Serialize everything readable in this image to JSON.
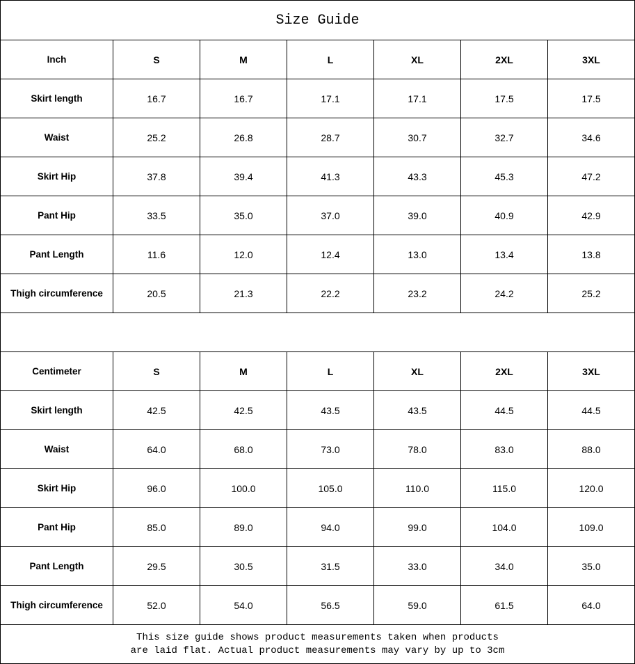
{
  "title": "Size Guide",
  "tables": [
    {
      "unit": "Inch",
      "sizes": [
        "S",
        "M",
        "L",
        "XL",
        "2XL",
        "3XL"
      ],
      "rows": [
        {
          "label": "Skirt length",
          "values": [
            "16.7",
            "16.7",
            "17.1",
            "17.1",
            "17.5",
            "17.5"
          ]
        },
        {
          "label": "Waist",
          "values": [
            "25.2",
            "26.8",
            "28.7",
            "30.7",
            "32.7",
            "34.6"
          ]
        },
        {
          "label": "Skirt Hip",
          "values": [
            "37.8",
            "39.4",
            "41.3",
            "43.3",
            "45.3",
            "47.2"
          ]
        },
        {
          "label": "Pant Hip",
          "values": [
            "33.5",
            "35.0",
            "37.0",
            "39.0",
            "40.9",
            "42.9"
          ]
        },
        {
          "label": "Pant Length",
          "values": [
            "11.6",
            "12.0",
            "12.4",
            "13.0",
            "13.4",
            "13.8"
          ]
        },
        {
          "label": "Thigh circumference",
          "values": [
            "20.5",
            "21.3",
            "22.2",
            "23.2",
            "24.2",
            "25.2"
          ]
        }
      ]
    },
    {
      "unit": "Centimeter",
      "sizes": [
        "S",
        "M",
        "L",
        "XL",
        "2XL",
        "3XL"
      ],
      "rows": [
        {
          "label": "Skirt length",
          "values": [
            "42.5",
            "42.5",
            "43.5",
            "43.5",
            "44.5",
            "44.5"
          ]
        },
        {
          "label": "Waist",
          "values": [
            "64.0",
            "68.0",
            "73.0",
            "78.0",
            "83.0",
            "88.0"
          ]
        },
        {
          "label": "Skirt Hip",
          "values": [
            "96.0",
            "100.0",
            "105.0",
            "110.0",
            "115.0",
            "120.0"
          ]
        },
        {
          "label": "Pant Hip",
          "values": [
            "85.0",
            "89.0",
            "94.0",
            "99.0",
            "104.0",
            "109.0"
          ]
        },
        {
          "label": "Pant Length",
          "values": [
            "29.5",
            "30.5",
            "31.5",
            "33.0",
            "34.0",
            "35.0"
          ]
        },
        {
          "label": "Thigh circumference",
          "values": [
            "52.0",
            "54.0",
            "56.5",
            "59.0",
            "61.5",
            "64.0"
          ]
        }
      ]
    }
  ],
  "note": {
    "line1": "This size guide shows product measurements taken when products",
    "line2": "are laid flat. Actual product measurements may vary by up to 3cm"
  }
}
